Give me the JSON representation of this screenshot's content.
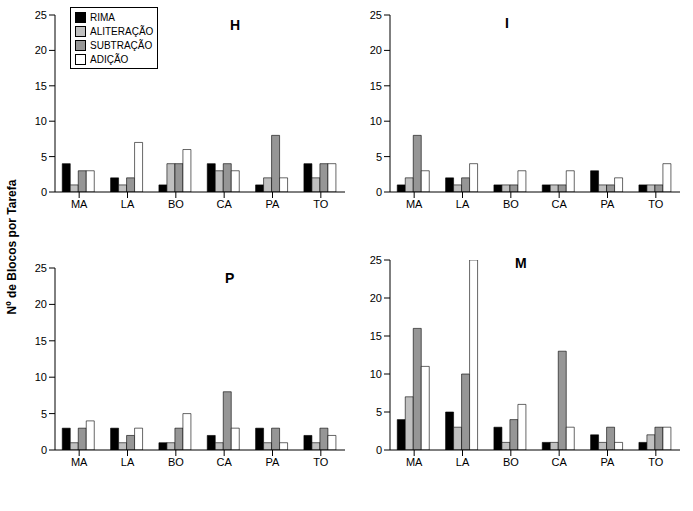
{
  "chart_data": [
    {
      "type": "bar",
      "title": "H",
      "ylabel": "Nº de Blocos por Tarefa",
      "legend": "upper left",
      "categories": [
        "MA",
        "LA",
        "BO",
        "CA",
        "PA",
        "TO"
      ],
      "series": [
        {
          "name": "RIMA",
          "color": "#000000",
          "values": [
            4,
            2,
            1,
            4,
            1,
            4
          ]
        },
        {
          "name": "ALITERAÇÃO",
          "color": "#c0c0c0",
          "values": [
            1,
            1,
            4,
            3,
            2,
            2
          ]
        },
        {
          "name": "SUBTRAÇÃO",
          "color": "#969696",
          "values": [
            3,
            2,
            4,
            4,
            8,
            4
          ]
        },
        {
          "name": "ADIÇÃO",
          "color": "#ffffff",
          "values": [
            3,
            7,
            6,
            3,
            2,
            4
          ]
        }
      ],
      "ylim": [
        0,
        25
      ],
      "yticks": [
        0,
        5,
        10,
        15,
        20,
        25
      ]
    },
    {
      "type": "bar",
      "title": "I",
      "categories": [
        "MA",
        "LA",
        "BO",
        "CA",
        "PA",
        "TO"
      ],
      "series": [
        {
          "name": "RIMA",
          "color": "#000000",
          "values": [
            1,
            2,
            1,
            1,
            3,
            1
          ]
        },
        {
          "name": "ALITERAÇÃO",
          "color": "#c0c0c0",
          "values": [
            2,
            1,
            1,
            1,
            1,
            1
          ]
        },
        {
          "name": "SUBTRAÇÃO",
          "color": "#969696",
          "values": [
            8,
            2,
            1,
            1,
            1,
            1
          ]
        },
        {
          "name": "ADIÇÃO",
          "color": "#ffffff",
          "values": [
            3,
            4,
            3,
            3,
            2,
            4
          ]
        }
      ],
      "ylim": [
        0,
        25
      ],
      "yticks": [
        0,
        5,
        10,
        15,
        20,
        25
      ]
    },
    {
      "type": "bar",
      "title": "P",
      "categories": [
        "MA",
        "LA",
        "BO",
        "CA",
        "PA",
        "TO"
      ],
      "series": [
        {
          "name": "RIMA",
          "color": "#000000",
          "values": [
            3,
            3,
            1,
            2,
            3,
            2
          ]
        },
        {
          "name": "ALITERAÇÃO",
          "color": "#c0c0c0",
          "values": [
            1,
            1,
            1,
            1,
            1,
            1
          ]
        },
        {
          "name": "SUBTRAÇÃO",
          "color": "#969696",
          "values": [
            3,
            2,
            3,
            8,
            3,
            3
          ]
        },
        {
          "name": "ADIÇÃO",
          "color": "#ffffff",
          "values": [
            4,
            3,
            5,
            3,
            1,
            2
          ]
        }
      ],
      "ylim": [
        0,
        25
      ],
      "yticks": [
        0,
        5,
        10,
        15,
        20,
        25
      ]
    },
    {
      "type": "bar",
      "title": "M",
      "categories": [
        "MA",
        "LA",
        "BO",
        "CA",
        "PA",
        "TO"
      ],
      "series": [
        {
          "name": "RIMA",
          "color": "#000000",
          "values": [
            4,
            5,
            3,
            1,
            2,
            1
          ]
        },
        {
          "name": "ALITERAÇÃO",
          "color": "#c0c0c0",
          "values": [
            7,
            3,
            1,
            1,
            1,
            2
          ]
        },
        {
          "name": "SUBTRAÇÃO",
          "color": "#969696",
          "values": [
            16,
            10,
            4,
            13,
            3,
            3
          ]
        },
        {
          "name": "ADIÇÃO",
          "color": "#ffffff",
          "values": [
            11,
            25,
            6,
            3,
            1,
            3
          ]
        }
      ],
      "ylim": [
        0,
        25
      ],
      "yticks": [
        0,
        5,
        10,
        15,
        20,
        25
      ]
    }
  ]
}
